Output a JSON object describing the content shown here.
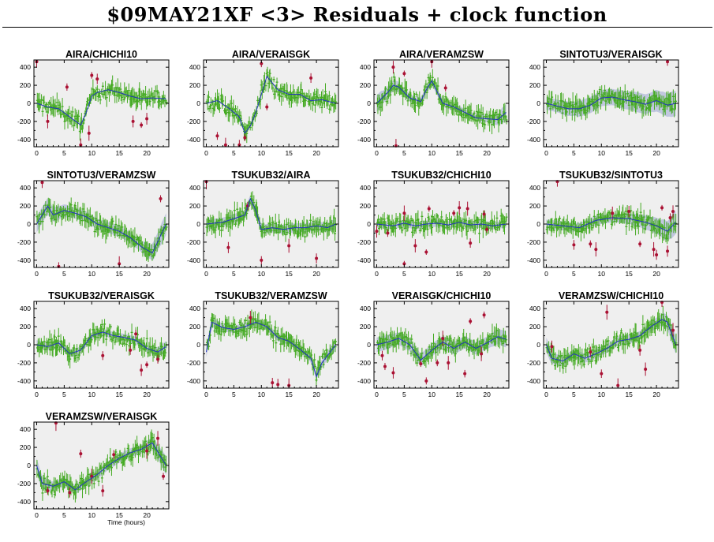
{
  "title": "$09MAY21XF <3> Residuals + clock function",
  "colors": {
    "background": "#efefef",
    "residual": "#44aa22",
    "outlier": "#aa1133",
    "clock": "#2233bb",
    "band": "#b8c0dc"
  },
  "chart_data": [
    {
      "type": "scatter",
      "title": "AIRA/CHICHI10",
      "ylim": [
        -480,
        480
      ],
      "xlim": [
        -0.5,
        24
      ],
      "yticks": [
        -400,
        -200,
        0,
        200,
        400
      ],
      "xticks": [
        0,
        5,
        10,
        15,
        20
      ],
      "clock": {
        "x": [
          0,
          2,
          4,
          6,
          8,
          9,
          10,
          11,
          13,
          15,
          17,
          19,
          21,
          23.5
        ],
        "y": [
          0,
          -40,
          -60,
          -150,
          -240,
          -100,
          80,
          120,
          150,
          120,
          80,
          50,
          60,
          50
        ]
      },
      "outliers": [
        {
          "x": 0,
          "y": 460
        },
        {
          "x": 2,
          "y": -200
        },
        {
          "x": 5.5,
          "y": 180
        },
        {
          "x": 8,
          "y": -460
        },
        {
          "x": 9.5,
          "y": -330
        },
        {
          "x": 10,
          "y": 310
        },
        {
          "x": 11,
          "y": 270
        },
        {
          "x": 17.5,
          "y": -200
        },
        {
          "x": 19,
          "y": -240
        },
        {
          "x": 20,
          "y": -170
        }
      ]
    },
    {
      "type": "scatter",
      "title": "AIRA/VERAISGK",
      "ylim": [
        -480,
        480
      ],
      "xlim": [
        -0.5,
        24
      ],
      "yticks": [
        -400,
        -200,
        0,
        200,
        400
      ],
      "xticks": [
        0,
        5,
        10,
        15,
        20
      ],
      "clock": {
        "x": [
          0,
          2,
          4,
          6,
          7,
          8,
          9,
          10,
          11,
          13,
          15,
          17,
          19,
          21,
          23.5
        ],
        "y": [
          0,
          30,
          -50,
          -150,
          -330,
          -250,
          -100,
          100,
          300,
          150,
          100,
          100,
          30,
          40,
          0
        ]
      },
      "outliers": [
        {
          "x": 2,
          "y": -360
        },
        {
          "x": 3.5,
          "y": -460
        },
        {
          "x": 6,
          "y": -460
        },
        {
          "x": 7,
          "y": -380
        },
        {
          "x": 10,
          "y": 440
        },
        {
          "x": 11,
          "y": -40
        },
        {
          "x": 19,
          "y": 280
        }
      ]
    },
    {
      "type": "scatter",
      "title": "AIRA/VERAMZSW",
      "ylim": [
        -480,
        480
      ],
      "xlim": [
        -0.5,
        24
      ],
      "yticks": [
        -400,
        -200,
        0,
        200,
        400
      ],
      "xticks": [
        0,
        5,
        10,
        15,
        20
      ],
      "band": [
        90,
        70,
        60,
        50,
        40,
        40,
        40,
        40,
        40,
        40,
        40,
        40,
        40,
        60,
        90
      ],
      "clock": {
        "x": [
          0,
          2,
          3,
          4,
          6,
          8,
          9,
          10,
          12,
          14,
          16,
          18,
          20,
          22,
          23.5
        ],
        "y": [
          0,
          120,
          200,
          180,
          60,
          20,
          150,
          250,
          0,
          -40,
          -100,
          -160,
          -170,
          -180,
          -100
        ]
      },
      "outliers": [
        {
          "x": 3,
          "y": 400
        },
        {
          "x": 3.5,
          "y": -470
        },
        {
          "x": 5,
          "y": 330
        },
        {
          "x": 10,
          "y": 460
        },
        {
          "x": 12.5,
          "y": 170
        }
      ]
    },
    {
      "type": "scatter",
      "title": "SINTOTU3/VERAISGK",
      "ylim": [
        -480,
        480
      ],
      "xlim": [
        -0.5,
        24
      ],
      "yticks": [
        -400,
        -200,
        0,
        200,
        400
      ],
      "xticks": [
        0,
        5,
        10,
        15,
        20
      ],
      "band": [
        70,
        70,
        80,
        80,
        90,
        90,
        90,
        90,
        100,
        100,
        110,
        110,
        120,
        130,
        140
      ],
      "clock": {
        "x": [
          0,
          2,
          4,
          6,
          8,
          10,
          12,
          14,
          16,
          18,
          20,
          22,
          23.5
        ],
        "y": [
          0,
          -30,
          -60,
          -60,
          -20,
          60,
          70,
          40,
          20,
          -10,
          30,
          -20,
          0
        ]
      },
      "outliers": [
        {
          "x": 22,
          "y": 460
        }
      ]
    },
    {
      "type": "scatter",
      "title": "SINTOTU3/VERAMZSW",
      "ylim": [
        -480,
        480
      ],
      "xlim": [
        -0.5,
        24
      ],
      "yticks": [
        -400,
        -200,
        0,
        200,
        400
      ],
      "xticks": [
        0,
        5,
        10,
        15,
        20
      ],
      "band": [
        90,
        90,
        80,
        70,
        60,
        60,
        60,
        60,
        60,
        60,
        60,
        60,
        80,
        100,
        120
      ],
      "clock": {
        "x": [
          0,
          2,
          3,
          5,
          7,
          9,
          11,
          13,
          15,
          17,
          19,
          21,
          23.5
        ],
        "y": [
          0,
          200,
          100,
          150,
          120,
          80,
          0,
          -40,
          -80,
          -150,
          -250,
          -320,
          0
        ]
      },
      "outliers": [
        {
          "x": 1,
          "y": 460
        },
        {
          "x": 4,
          "y": -470
        },
        {
          "x": 15,
          "y": -440
        },
        {
          "x": 22.5,
          "y": 280
        }
      ]
    },
    {
      "type": "scatter",
      "title": "TSUKUB32/AIRA",
      "ylim": [
        -480,
        480
      ],
      "xlim": [
        -0.5,
        24
      ],
      "yticks": [
        -400,
        -200,
        0,
        200,
        400
      ],
      "xticks": [
        0,
        5,
        10,
        15,
        20
      ],
      "band": [
        60,
        50,
        50,
        50,
        50,
        50,
        50,
        50,
        50,
        50,
        50,
        50,
        50,
        50,
        60
      ],
      "clock": {
        "x": [
          0,
          3,
          5,
          7,
          8,
          9,
          10,
          12,
          14,
          16,
          18,
          20,
          22,
          23.5
        ],
        "y": [
          0,
          20,
          60,
          100,
          280,
          150,
          -60,
          -40,
          -60,
          -40,
          -40,
          -20,
          -40,
          0
        ]
      },
      "outliers": [
        {
          "x": 0,
          "y": 470
        },
        {
          "x": 4,
          "y": -260
        },
        {
          "x": 7.5,
          "y": 200
        },
        {
          "x": 10,
          "y": -400
        },
        {
          "x": 15,
          "y": -240
        },
        {
          "x": 20,
          "y": -380
        }
      ]
    },
    {
      "type": "scatter",
      "title": "TSUKUB32/CHICHI10",
      "ylim": [
        -480,
        480
      ],
      "xlim": [
        -0.5,
        24
      ],
      "yticks": [
        -400,
        -200,
        0,
        200,
        400
      ],
      "xticks": [
        0,
        5,
        10,
        15,
        20
      ],
      "band": [
        40,
        40,
        40,
        40,
        40,
        40,
        40,
        40,
        40,
        40,
        40,
        40,
        40,
        40,
        40
      ],
      "clock": {
        "x": [
          0,
          3,
          5,
          7,
          9,
          11,
          13,
          15,
          17,
          19,
          21,
          23.5
        ],
        "y": [
          0,
          -20,
          10,
          -20,
          0,
          10,
          -10,
          20,
          -10,
          0,
          -20,
          0
        ]
      },
      "outliers": [
        {
          "x": 0,
          "y": -80
        },
        {
          "x": 2,
          "y": -100
        },
        {
          "x": 5,
          "y": 120
        },
        {
          "x": 5,
          "y": -440
        },
        {
          "x": 7,
          "y": -240
        },
        {
          "x": 9,
          "y": -310
        },
        {
          "x": 9.5,
          "y": 170
        },
        {
          "x": 14,
          "y": 120
        },
        {
          "x": 15,
          "y": 180
        },
        {
          "x": 16.5,
          "y": 170
        },
        {
          "x": 17,
          "y": -210
        },
        {
          "x": 19.5,
          "y": 110
        },
        {
          "x": 20,
          "y": -60
        }
      ]
    },
    {
      "type": "scatter",
      "title": "TSUKUB32/SINTOTU3",
      "ylim": [
        -480,
        480
      ],
      "xlim": [
        -0.5,
        24
      ],
      "yticks": [
        -400,
        -200,
        0,
        200,
        400
      ],
      "xticks": [
        0,
        5,
        10,
        15,
        20
      ],
      "band": [
        50,
        50,
        50,
        50,
        50,
        50,
        50,
        50,
        50,
        60,
        70,
        80,
        90,
        110,
        130
      ],
      "clock": {
        "x": [
          0,
          3,
          6,
          9,
          12,
          15,
          18,
          20,
          22,
          23.5
        ],
        "y": [
          0,
          -20,
          -40,
          40,
          70,
          60,
          20,
          -20,
          -80,
          20
        ]
      },
      "outliers": [
        {
          "x": 2,
          "y": 470
        },
        {
          "x": 5,
          "y": -230
        },
        {
          "x": 8,
          "y": -220
        },
        {
          "x": 9,
          "y": -280
        },
        {
          "x": 12,
          "y": 120
        },
        {
          "x": 15,
          "y": 140
        },
        {
          "x": 17,
          "y": -220
        },
        {
          "x": 19.5,
          "y": -280
        },
        {
          "x": 20,
          "y": -340
        },
        {
          "x": 21,
          "y": 180
        },
        {
          "x": 22,
          "y": -300
        },
        {
          "x": 22.5,
          "y": 70
        },
        {
          "x": 23,
          "y": 140
        }
      ]
    },
    {
      "type": "scatter",
      "title": "TSUKUB32/VERAISGK",
      "ylim": [
        -480,
        480
      ],
      "xlim": [
        -0.5,
        24
      ],
      "yticks": [
        -400,
        -200,
        0,
        200,
        400
      ],
      "xticks": [
        0,
        5,
        10,
        15,
        20
      ],
      "band": [
        50,
        40,
        40,
        40,
        40,
        40,
        40,
        40,
        40,
        40,
        40,
        40,
        40,
        50,
        60
      ],
      "clock": {
        "x": [
          0,
          2,
          4,
          6,
          8,
          10,
          12,
          14,
          16,
          18,
          20,
          22,
          23.5
        ],
        "y": [
          0,
          -20,
          20,
          -100,
          -60,
          100,
          140,
          100,
          80,
          50,
          -40,
          -80,
          -20
        ]
      },
      "outliers": [
        {
          "x": 12,
          "y": -120
        },
        {
          "x": 17,
          "y": -60
        },
        {
          "x": 18,
          "y": 120
        },
        {
          "x": 19,
          "y": -280
        },
        {
          "x": 20,
          "y": -220
        },
        {
          "x": 22,
          "y": -160
        }
      ]
    },
    {
      "type": "scatter",
      "title": "TSUKUB32/VERAMZSW",
      "ylim": [
        -480,
        480
      ],
      "xlim": [
        -0.5,
        24
      ],
      "yticks": [
        -400,
        -200,
        0,
        200,
        400
      ],
      "xticks": [
        0,
        5,
        10,
        15,
        20
      ],
      "band": [
        60,
        50,
        40,
        40,
        40,
        40,
        40,
        40,
        40,
        40,
        40,
        40,
        40,
        50,
        60
      ],
      "clock": {
        "x": [
          0,
          1,
          3,
          5,
          7,
          9,
          11,
          13,
          15,
          17,
          19,
          20,
          21,
          23.5
        ],
        "y": [
          -80,
          250,
          190,
          170,
          200,
          250,
          200,
          80,
          40,
          -50,
          -150,
          -350,
          -200,
          0
        ]
      },
      "outliers": [
        {
          "x": 8,
          "y": 300
        },
        {
          "x": 12,
          "y": -420
        },
        {
          "x": 13,
          "y": -440
        },
        {
          "x": 15,
          "y": -450
        }
      ]
    },
    {
      "type": "scatter",
      "title": "VERAISGK/CHICHI10",
      "ylim": [
        -480,
        480
      ],
      "xlim": [
        -0.5,
        24
      ],
      "yticks": [
        -400,
        -200,
        0,
        200,
        400
      ],
      "xticks": [
        0,
        5,
        10,
        15,
        20
      ],
      "band": [
        80,
        80,
        70,
        70,
        70,
        70,
        70,
        70,
        70,
        70,
        70,
        70,
        70,
        80,
        90
      ],
      "clock": {
        "x": [
          0,
          2,
          4,
          6,
          8,
          10,
          12,
          14,
          16,
          18,
          20,
          22,
          23.5
        ],
        "y": [
          0,
          30,
          70,
          0,
          -170,
          -60,
          30,
          -40,
          30,
          -40,
          20,
          90,
          60
        ]
      },
      "outliers": [
        {
          "x": 1,
          "y": -120
        },
        {
          "x": 1.5,
          "y": -240
        },
        {
          "x": 3,
          "y": -310
        },
        {
          "x": 8,
          "y": -210
        },
        {
          "x": 9,
          "y": -400
        },
        {
          "x": 11,
          "y": -200
        },
        {
          "x": 12,
          "y": 70
        },
        {
          "x": 13,
          "y": -200
        },
        {
          "x": 16,
          "y": -320
        },
        {
          "x": 17,
          "y": 260
        },
        {
          "x": 19,
          "y": -100
        },
        {
          "x": 19.5,
          "y": 330
        }
      ]
    },
    {
      "type": "scatter",
      "title": "VERAMZSW/CHICHI10",
      "ylim": [
        -480,
        480
      ],
      "xlim": [
        -0.5,
        24
      ],
      "yticks": [
        -400,
        -200,
        0,
        200,
        400
      ],
      "xticks": [
        0,
        5,
        10,
        15,
        20
      ],
      "band": [
        80,
        60,
        50,
        50,
        50,
        50,
        50,
        50,
        50,
        50,
        50,
        50,
        60,
        80,
        100
      ],
      "clock": {
        "x": [
          0,
          1,
          3,
          5,
          7,
          9,
          11,
          13,
          15,
          17,
          19,
          21,
          22,
          23.5
        ],
        "y": [
          0,
          -150,
          -180,
          -100,
          -150,
          -100,
          -40,
          40,
          60,
          100,
          200,
          280,
          250,
          0
        ]
      },
      "outliers": [
        {
          "x": 1,
          "y": -20
        },
        {
          "x": 8,
          "y": -80
        },
        {
          "x": 10,
          "y": -320
        },
        {
          "x": 11,
          "y": 360
        },
        {
          "x": 13,
          "y": -450
        },
        {
          "x": 17,
          "y": -60
        },
        {
          "x": 18,
          "y": -270
        },
        {
          "x": 21,
          "y": 470
        },
        {
          "x": 23,
          "y": 160
        }
      ]
    },
    {
      "type": "scatter",
      "title": "VERAMZSW/VERAISGK",
      "ylim": [
        -480,
        480
      ],
      "xlim": [
        -0.5,
        24
      ],
      "yticks": [
        -400,
        -200,
        0,
        200,
        400
      ],
      "xticks": [
        0,
        5,
        10,
        15,
        20
      ],
      "xlabel": "Time (hours)",
      "band": [
        80,
        60,
        50,
        50,
        50,
        50,
        50,
        50,
        50,
        50,
        50,
        50,
        60,
        80,
        100
      ],
      "clock": {
        "x": [
          0,
          1,
          3,
          5,
          7,
          9,
          11,
          13,
          15,
          17,
          19,
          21,
          22,
          23.5
        ],
        "y": [
          0,
          -200,
          -230,
          -180,
          -270,
          -180,
          -100,
          0,
          80,
          140,
          180,
          250,
          150,
          0
        ]
      },
      "outliers": [
        {
          "x": 2,
          "y": -280
        },
        {
          "x": 3.5,
          "y": 470
        },
        {
          "x": 6,
          "y": -300
        },
        {
          "x": 8,
          "y": 130
        },
        {
          "x": 10,
          "y": -120
        },
        {
          "x": 12,
          "y": -280
        },
        {
          "x": 14,
          "y": 120
        },
        {
          "x": 20,
          "y": 160
        },
        {
          "x": 22,
          "y": 300
        },
        {
          "x": 23,
          "y": -120
        }
      ]
    }
  ]
}
